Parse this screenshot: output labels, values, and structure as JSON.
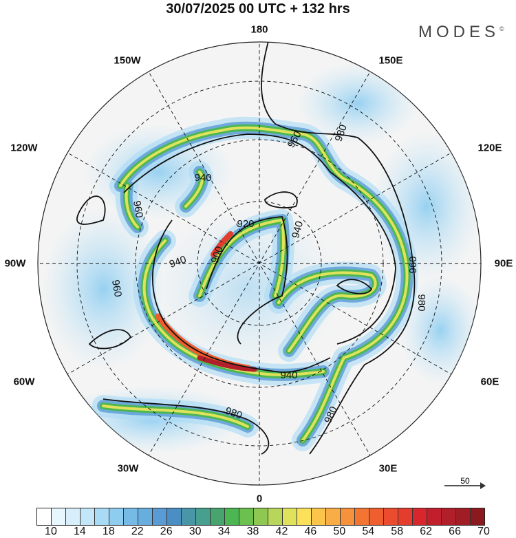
{
  "title": "30/07/2025  00 UTC  + 132 hrs",
  "logo": "MODES",
  "longitude_labels": [
    "180",
    "150W",
    "150E",
    "120W",
    "120E",
    "90W",
    "90E",
    "60W",
    "60E",
    "30W",
    "30E",
    "0"
  ],
  "contour_labels": [
    "980",
    "960",
    "940",
    "960",
    "920",
    "940",
    "900",
    "940",
    "960",
    "960",
    "980",
    "940",
    "980",
    "980"
  ],
  "reference_vector": "50",
  "colorbar": {
    "ticks": [
      "10",
      "14",
      "18",
      "22",
      "26",
      "30",
      "34",
      "38",
      "42",
      "46",
      "50",
      "54",
      "58",
      "62",
      "66",
      "70"
    ],
    "colors": [
      "#ffffff",
      "#e8f6fd",
      "#d8effb",
      "#c3e6f9",
      "#aadbf5",
      "#8ecdf0",
      "#76bbe6",
      "#67aedf",
      "#5a9bd5",
      "#4a8ec4",
      "#4896a8",
      "#47a08f",
      "#48a46e",
      "#4cb752",
      "#6cc04e",
      "#8ec751",
      "#b8d75a",
      "#e0e25c",
      "#fbe05a",
      "#fbc54b",
      "#f9ad46",
      "#f6923b",
      "#f47532",
      "#ef5e2e",
      "#eb4c2d",
      "#e43d2e",
      "#d9262d",
      "#c11f2c",
      "#b11f2a",
      "#a01d26",
      "#8b1a1f"
    ]
  }
}
